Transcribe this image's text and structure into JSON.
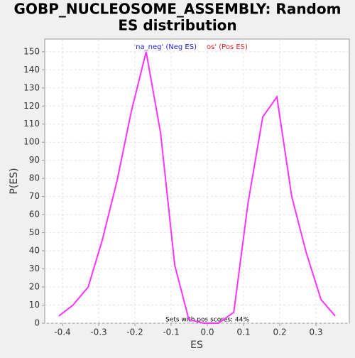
{
  "chart_data": {
    "type": "line",
    "title": "GOBP_NUCLEOSOME_ASSEMBLY: Random ES distribution",
    "title_lines": [
      "GOBP_NUCLEOSOME_ASSEMBLY: Random",
      "ES distribution"
    ],
    "xlabel": "ES",
    "ylabel": "P(ES)",
    "legend_neg": "'na_neg' (Neg ES)",
    "legend_pos": "os' (Pos ES)",
    "annotation": "Sets with pos scores: 44%",
    "x": [
      -0.41,
      -0.371,
      -0.329,
      -0.29,
      -0.249,
      -0.21,
      -0.169,
      -0.129,
      -0.09,
      -0.051,
      -0.01,
      0.031,
      0.073,
      0.112,
      0.153,
      0.192,
      0.233,
      0.273,
      0.314,
      0.353
    ],
    "series": [
      {
        "color": "#ff33ff",
        "values": [
          4,
          10,
          20,
          46,
          79,
          117,
          150,
          105,
          32,
          2,
          0,
          0,
          6,
          66,
          114,
          125,
          70,
          39,
          13,
          4
        ]
      }
    ],
    "xlim": [
      -0.449,
      0.392
    ],
    "ylim": [
      0,
      157
    ],
    "xticks": [
      -0.4,
      -0.3,
      -0.2,
      -0.1,
      {
        "value": 0,
        "label": "0.0"
      },
      0.1,
      0.2,
      0.3
    ],
    "yticks": [
      0,
      10,
      20,
      30,
      40,
      50,
      60,
      70,
      80,
      90,
      100,
      110,
      120,
      130,
      140,
      150
    ],
    "grid": true
  }
}
